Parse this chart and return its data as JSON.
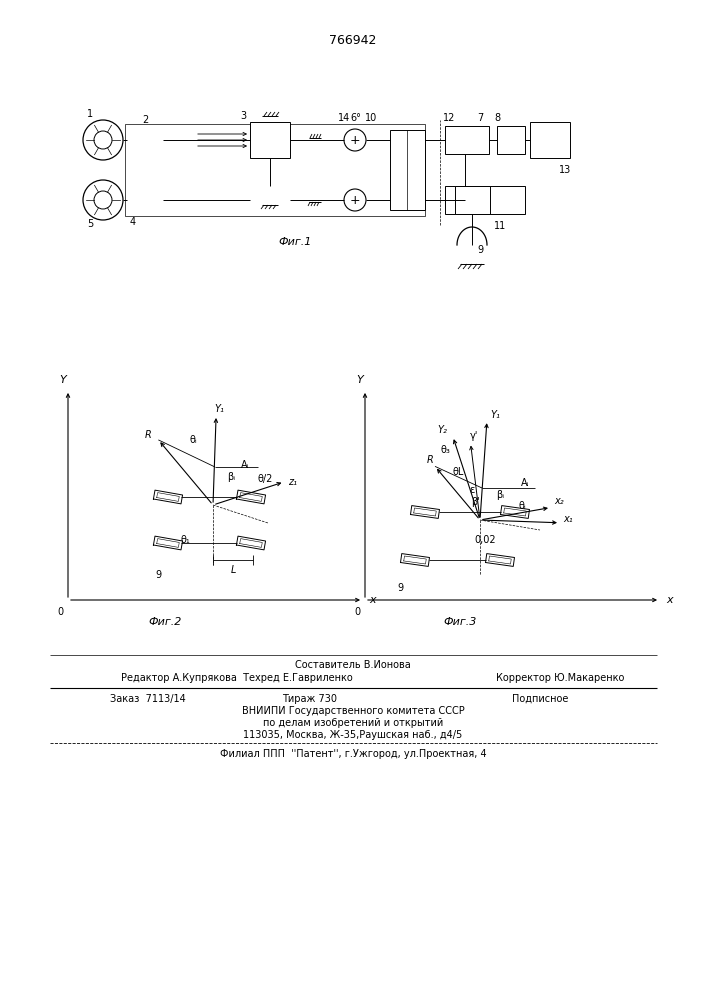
{
  "title_number": "766942",
  "fig1_caption": "Фиг.1",
  "fig2_caption": "Фиг.2",
  "fig3_caption": "Фиг.3",
  "footer_comp": "Составитель В.Ионова",
  "footer_ed": "Редактор А.Купрякова  Техред Е.Гавриленко",
  "footer_corr": "Корректор Ю.Макаренко",
  "footer_order": "Заказ  7113/14",
  "footer_circ": "Тираж 730",
  "footer_sub": "Подписное",
  "footer_org": "ВНИИПИ Государственного комитета СССР",
  "footer_dept": "по делам изобретений и открытий",
  "footer_addr": "113035, Москва, Ж-35,Раушская наб., д4/5",
  "footer_branch": "Филиал ППП  ''Патент'', г.Ужгород, ул.Проектная, 4",
  "bg_color": "#ffffff"
}
